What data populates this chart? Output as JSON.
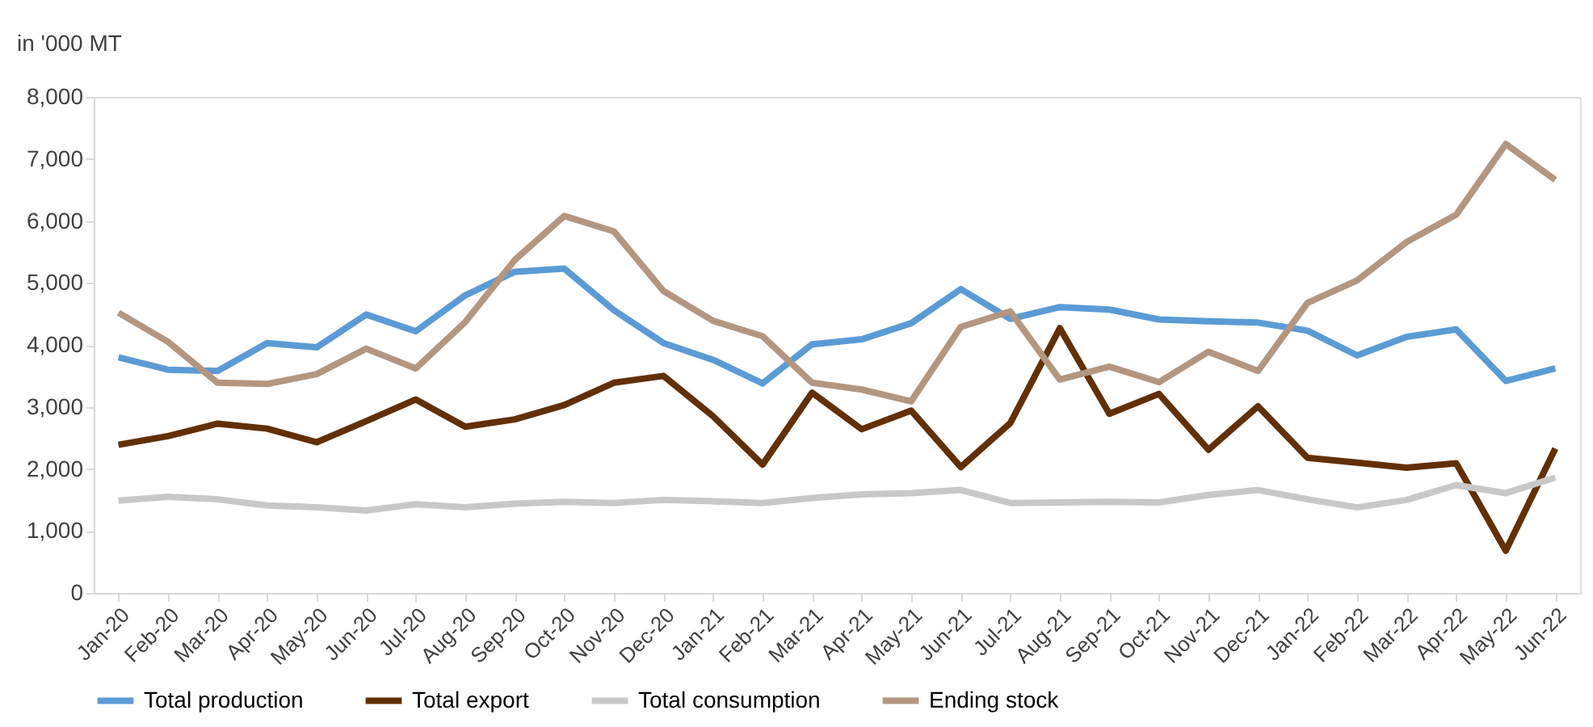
{
  "chart_data": {
    "type": "line",
    "ylabel": "in '000 MT",
    "categories": [
      "Jan-20",
      "Feb-20",
      "Mar-20",
      "Apr-20",
      "May-20",
      "Jun-20",
      "Jul-20",
      "Aug-20",
      "Sep-20",
      "Oct-20",
      "Nov-20",
      "Dec-20",
      "Jan-21",
      "Feb-21",
      "Mar-21",
      "Apr-21",
      "May-21",
      "Jun-21",
      "Jul-21",
      "Aug-21",
      "Sep-21",
      "Oct-21",
      "Nov-21",
      "Dec-21",
      "Jan-22",
      "Feb-22",
      "Mar-22",
      "Apr-22",
      "May-22",
      "Jun-22"
    ],
    "series": [
      {
        "name": "Total production",
        "color": "#5b9bd5",
        "values": [
          3800,
          3600,
          3580,
          4030,
          3960,
          4490,
          4220,
          4800,
          5180,
          5230,
          4560,
          4030,
          3760,
          3380,
          4010,
          4090,
          4350,
          4900,
          4420,
          4610,
          4570,
          4410,
          4380,
          4360,
          4230,
          3830,
          4130,
          4250,
          3420,
          3620
        ]
      },
      {
        "name": "Total export",
        "color": "#622f06",
        "values": [
          2390,
          2530,
          2730,
          2650,
          2430,
          2770,
          3120,
          2680,
          2800,
          3030,
          3390,
          3500,
          2850,
          2070,
          3230,
          2640,
          2940,
          2030,
          2740,
          4270,
          2890,
          3210,
          2310,
          3010,
          2180,
          2100,
          2020,
          2090,
          680,
          2330
        ]
      },
      {
        "name": "Total consumption",
        "color": "#c8c8c8",
        "values": [
          1490,
          1550,
          1510,
          1410,
          1380,
          1330,
          1430,
          1380,
          1440,
          1470,
          1450,
          1500,
          1480,
          1450,
          1530,
          1590,
          1610,
          1660,
          1450,
          1460,
          1470,
          1460,
          1580,
          1660,
          1510,
          1380,
          1500,
          1740,
          1610,
          1860
        ]
      },
      {
        "name": "Ending stock",
        "color": "#b49680",
        "values": [
          4520,
          4050,
          3390,
          3370,
          3530,
          3940,
          3620,
          4370,
          5370,
          6080,
          5830,
          4870,
          4390,
          4140,
          3390,
          3280,
          3090,
          4290,
          4540,
          3440,
          3650,
          3400,
          3890,
          3580,
          4680,
          5040,
          5660,
          6100,
          7240,
          6660
        ]
      }
    ],
    "ylim": [
      0,
      8000
    ],
    "yticks": [
      0,
      {
        "value": 1000,
        "label": "1,000"
      },
      {
        "value": 2000,
        "label": "2,000"
      },
      {
        "value": 3000,
        "label": "3,000"
      },
      {
        "value": 4000,
        "label": "4,000"
      },
      {
        "value": 5000,
        "label": "5,000"
      },
      {
        "value": 6000,
        "label": "6,000"
      },
      {
        "value": 7000,
        "label": "7,000"
      },
      {
        "value": 8000,
        "label": "8,000"
      }
    ],
    "grid": false,
    "legend": "bottom",
    "line_style": "solid",
    "marker": "none"
  }
}
